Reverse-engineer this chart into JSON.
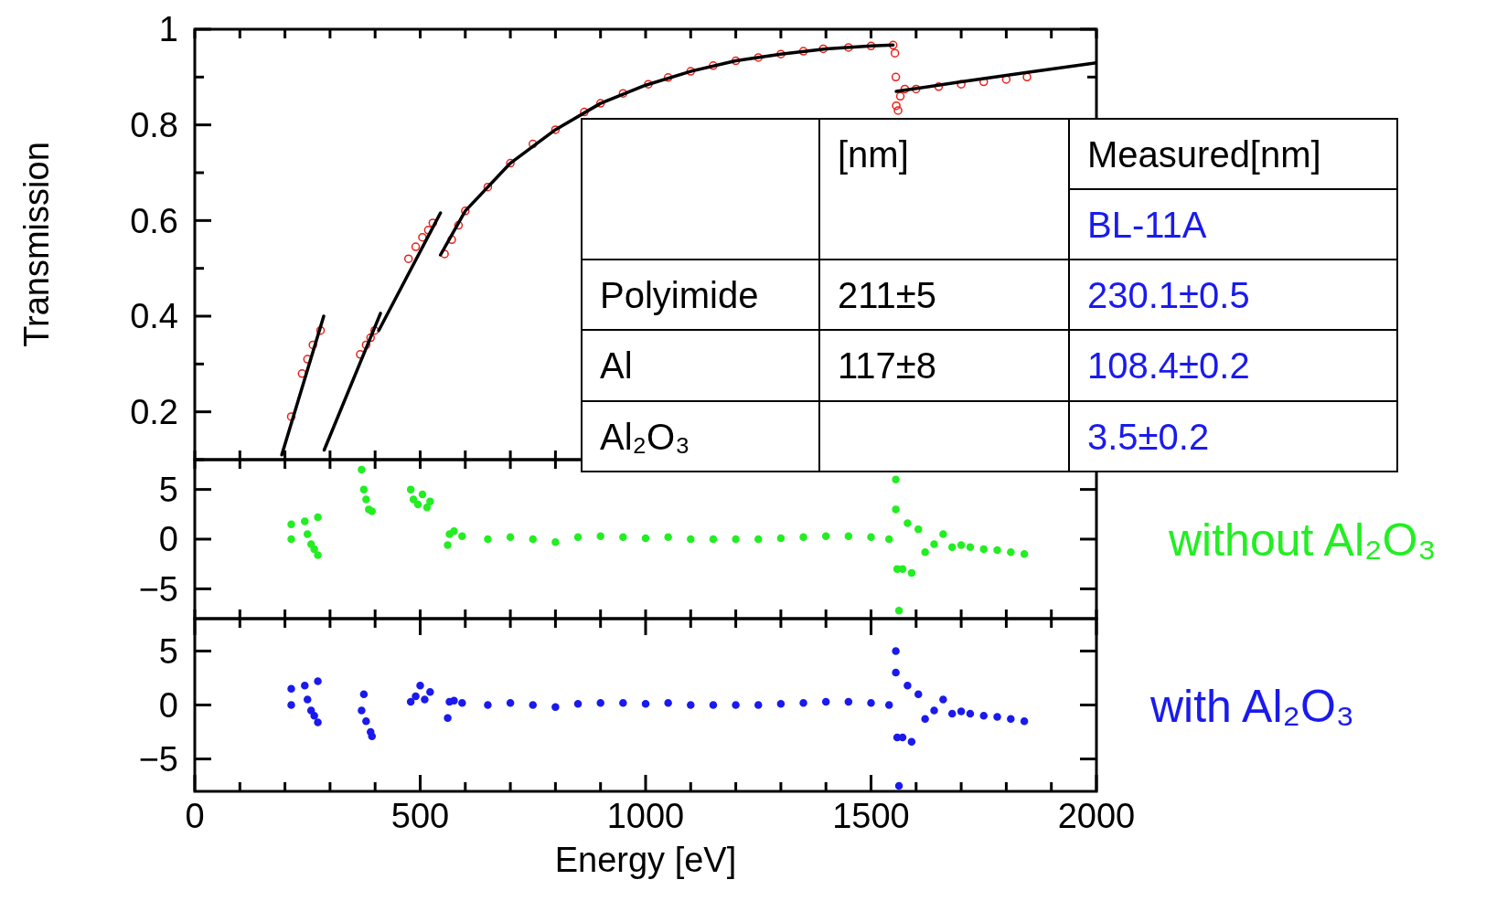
{
  "chart_data": [
    {
      "type": "scatter",
      "ylabel": "Transmission",
      "xlim": [
        0,
        2000
      ],
      "ylim": [
        0.1,
        1
      ],
      "tick_labels": "y",
      "xticks": [
        {
          "value": 0,
          "label": null
        },
        {
          "value": 100,
          "label": null
        },
        {
          "value": 200,
          "label": null
        },
        {
          "value": 300,
          "label": null
        },
        {
          "value": 400,
          "label": null
        },
        {
          "value": 500,
          "label": null
        },
        {
          "value": 600,
          "label": null
        },
        {
          "value": 700,
          "label": null
        },
        {
          "value": 800,
          "label": null
        },
        {
          "value": 900,
          "label": null
        },
        {
          "value": 1000,
          "label": null
        },
        {
          "value": 1100,
          "label": null
        },
        {
          "value": 1200,
          "label": null
        },
        {
          "value": 1300,
          "label": null
        },
        {
          "value": 1400,
          "label": null
        },
        {
          "value": 1500,
          "label": null
        },
        {
          "value": 1600,
          "label": null
        },
        {
          "value": 1700,
          "label": null
        },
        {
          "value": 1800,
          "label": null
        },
        {
          "value": 1900,
          "label": null
        },
        {
          "value": 2000,
          "label": null
        }
      ],
      "yticks": [
        {
          "value": 0.1,
          "label": null
        },
        0.2,
        {
          "value": 0.3,
          "label": null
        },
        0.4,
        {
          "value": 0.5,
          "label": null
        },
        0.6,
        {
          "value": 0.7,
          "label": null
        },
        0.8,
        {
          "value": 0.9,
          "label": null
        },
        1
      ],
      "series": [
        {
          "type": "scatter",
          "marker": "circle",
          "color": "#e8201a",
          "x": [
            214,
            238,
            250,
            262,
            279,
            367,
            380,
            390,
            399,
            474,
            490,
            505,
            518,
            528,
            554,
            570,
            585,
            600,
            650,
            700,
            750,
            800,
            864,
            900,
            950,
            1006,
            1050,
            1100,
            1150,
            1200,
            1250,
            1300,
            1350,
            1394,
            1450,
            1500,
            1549,
            1553,
            1555,
            1556,
            1560,
            1565,
            1575,
            1600,
            1650,
            1700,
            1750,
            1800,
            1846
          ],
          "values": [
            0.19,
            0.28,
            0.31,
            0.34,
            0.37,
            0.32,
            0.34,
            0.355,
            0.37,
            0.52,
            0.545,
            0.565,
            0.58,
            0.595,
            0.53,
            0.56,
            0.59,
            0.62,
            0.67,
            0.72,
            0.76,
            0.79,
            0.827,
            0.845,
            0.866,
            0.885,
            0.899,
            0.912,
            0.924,
            0.934,
            0.941,
            0.948,
            0.954,
            0.959,
            0.962,
            0.965,
            0.967,
            0.95,
            0.9,
            0.84,
            0.83,
            0.86,
            0.875,
            0.875,
            0.88,
            0.885,
            0.89,
            0.895,
            0.9
          ]
        },
        {
          "type": "line",
          "marker": "none",
          "color": "#000000",
          "x": [
            193,
            286
          ],
          "values": [
            0.11,
            0.4
          ]
        },
        {
          "type": "line",
          "marker": "none",
          "color": "#000000",
          "x": [
            287,
            412
          ],
          "values": [
            0.12,
            0.406
          ]
        },
        {
          "type": "line",
          "marker": "none",
          "color": "#000000",
          "x": [
            408,
            545
          ],
          "values": [
            0.37,
            0.616
          ]
        },
        {
          "type": "line",
          "marker": "none",
          "color": "#000000",
          "x": [
            545,
            600,
            700,
            800,
            900,
            1000,
            1100,
            1200,
            1300,
            1400,
            1500,
            1549
          ],
          "values": [
            0.528,
            0.62,
            0.72,
            0.79,
            0.845,
            0.883,
            0.912,
            0.934,
            0.948,
            0.959,
            0.965,
            0.967
          ]
        },
        {
          "type": "line",
          "marker": "none",
          "color": "#000000",
          "x": [
            1556,
            1700,
            1850,
            2000
          ],
          "values": [
            0.87,
            0.89,
            0.91,
            0.93
          ]
        }
      ]
    },
    {
      "type": "scatter",
      "xlim": [
        0,
        2000
      ],
      "ylim": [
        -8,
        8
      ],
      "tick_labels": "y",
      "marker": "circle",
      "xticks": [
        {
          "value": 0,
          "label": null
        },
        {
          "value": 100,
          "label": null
        },
        {
          "value": 200,
          "label": null
        },
        {
          "value": 300,
          "label": null
        },
        {
          "value": 400,
          "label": null
        },
        {
          "value": 500,
          "label": null
        },
        {
          "value": 600,
          "label": null
        },
        {
          "value": 700,
          "label": null
        },
        {
          "value": 800,
          "label": null
        },
        {
          "value": 900,
          "label": null
        },
        {
          "value": 1000,
          "label": null
        },
        {
          "value": 1100,
          "label": null
        },
        {
          "value": 1200,
          "label": null
        },
        {
          "value": 1300,
          "label": null
        },
        {
          "value": 1400,
          "label": null
        },
        {
          "value": 1500,
          "label": null
        },
        {
          "value": 1600,
          "label": null
        },
        {
          "value": 1700,
          "label": null
        },
        {
          "value": 1800,
          "label": null
        },
        {
          "value": 1900,
          "label": null
        },
        {
          "value": 2000,
          "label": null
        }
      ],
      "yticks": [
        -5,
        0,
        5
      ],
      "series": [
        {
          "name": "without Al₂O₃",
          "color": "#22ee22",
          "x": [
            214,
            214,
            244,
            250,
            258,
            265,
            273,
            273,
            370,
            375,
            380,
            386,
            393,
            479,
            485,
            495,
            505,
            515,
            522,
            561,
            565,
            575,
            593,
            650,
            700,
            750,
            800,
            850,
            900,
            950,
            1000,
            1050,
            1100,
            1150,
            1200,
            1250,
            1300,
            1350,
            1400,
            1450,
            1500,
            1540,
            1555,
            1555,
            1558,
            1562,
            1570,
            1581,
            1590,
            1605,
            1620,
            1640,
            1660,
            1680,
            1700,
            1720,
            1750,
            1780,
            1810,
            1840
          ],
          "values": [
            1.5,
            0,
            1.8,
            0.5,
            -0.5,
            -1,
            2.2,
            -1.6,
            7,
            5,
            4,
            3,
            2.8,
            5,
            4,
            3.5,
            4.5,
            3.2,
            3.8,
            -0.6,
            0.5,
            0.8,
            0.3,
            0,
            0.2,
            0,
            -0.3,
            0.2,
            0.3,
            0.2,
            0.1,
            0.2,
            0,
            0,
            0,
            0,
            0.1,
            0.2,
            0.3,
            0.3,
            0.2,
            0,
            6,
            3,
            -3,
            -7.2,
            -3,
            1.6,
            -3.4,
            1,
            -1.3,
            -0.5,
            0.5,
            -0.8,
            -0.6,
            -0.8,
            -1,
            -1.1,
            -1.3,
            -1.5
          ]
        }
      ]
    },
    {
      "type": "scatter",
      "xlabel": "Energy [eV]",
      "xlim": [
        0,
        2000
      ],
      "ylim": [
        -8,
        8
      ],
      "marker": "circle",
      "xticks": [
        0,
        {
          "value": 100,
          "label": null
        },
        {
          "value": 200,
          "label": null
        },
        {
          "value": 300,
          "label": null
        },
        {
          "value": 400,
          "label": null
        },
        500,
        {
          "value": 600,
          "label": null
        },
        {
          "value": 700,
          "label": null
        },
        {
          "value": 800,
          "label": null
        },
        {
          "value": 900,
          "label": null
        },
        1000,
        {
          "value": 1100,
          "label": null
        },
        {
          "value": 1200,
          "label": null
        },
        {
          "value": 1300,
          "label": null
        },
        {
          "value": 1400,
          "label": null
        },
        1500,
        {
          "value": 1600,
          "label": null
        },
        {
          "value": 1700,
          "label": null
        },
        {
          "value": 1800,
          "label": null
        },
        {
          "value": 1900,
          "label": null
        },
        2000
      ],
      "yticks": [
        -5,
        0,
        5
      ],
      "series": [
        {
          "name": "with Al₂O₃",
          "color": "#1a1aee",
          "x": [
            214,
            214,
            244,
            250,
            258,
            265,
            273,
            273,
            370,
            375,
            380,
            390,
            393,
            479,
            490,
            500,
            510,
            522,
            561,
            565,
            575,
            593,
            650,
            700,
            750,
            800,
            850,
            900,
            950,
            1000,
            1050,
            1100,
            1150,
            1200,
            1250,
            1300,
            1350,
            1400,
            1450,
            1500,
            1540,
            1555,
            1555,
            1558,
            1562,
            1570,
            1581,
            1590,
            1605,
            1620,
            1640,
            1660,
            1680,
            1700,
            1720,
            1750,
            1780,
            1810,
            1840
          ],
          "values": [
            1.5,
            0,
            1.8,
            0.5,
            -0.5,
            -1,
            2.2,
            -1.6,
            -0.5,
            1,
            -1.5,
            -2.5,
            -2.9,
            0.3,
            0.8,
            1.8,
            0.5,
            1.2,
            -1.2,
            0.3,
            0.4,
            0.2,
            0,
            0.2,
            0,
            -0.2,
            0.1,
            0.2,
            0.2,
            0.1,
            0.2,
            0,
            0,
            0,
            0,
            0.1,
            0.2,
            0.3,
            0.3,
            0.2,
            0,
            5,
            3,
            -3,
            -7.5,
            -3,
            1.8,
            -3.4,
            1,
            -1.3,
            -0.5,
            0.5,
            -0.8,
            -0.6,
            -0.8,
            -1,
            -1.1,
            -1.3,
            -1.5
          ]
        }
      ]
    },
    {
      "type": "other",
      "cell_labels": [
        [
          null,
          "[nm]",
          "Measured[nm]"
        ],
        [
          null,
          null,
          "BL-11A"
        ],
        [
          "Polyimide",
          "211±5",
          "230.1±0.5"
        ],
        [
          "Al",
          "117±8",
          "108.4±0.2"
        ],
        [
          "Al₂O₃",
          null,
          "3.5±0.2"
        ]
      ],
      "colors": [
        [
          null,
          "#000000",
          "#000000"
        ],
        [
          null,
          null,
          "#1a1aee"
        ],
        [
          "#000000",
          "#000000",
          "#1a1aee"
        ],
        [
          "#000000",
          "#000000",
          "#1a1aee"
        ],
        [
          "#000000",
          null,
          "#1a1aee"
        ]
      ]
    }
  ]
}
